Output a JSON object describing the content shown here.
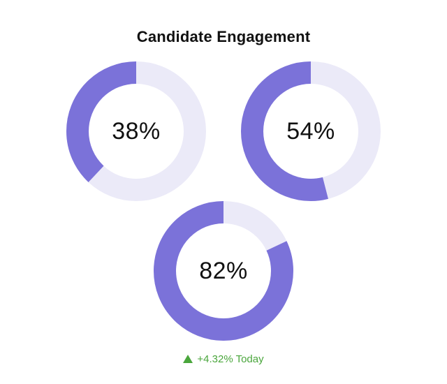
{
  "title": "Candidate Engagement",
  "colors": {
    "filled": "#7b72d9",
    "track": "#ebeaf8",
    "positive": "#4aa63c"
  },
  "chart_data": [
    {
      "type": "pie",
      "variant": "donut",
      "value": 38,
      "max": 100,
      "label": "38%"
    },
    {
      "type": "pie",
      "variant": "donut",
      "value": 54,
      "max": 100,
      "label": "54%"
    },
    {
      "type": "pie",
      "variant": "donut",
      "value": 82,
      "max": 100,
      "label": "82%"
    }
  ],
  "footer": {
    "trend_icon": "triangle-up-icon",
    "text": "+4.32% Today"
  }
}
